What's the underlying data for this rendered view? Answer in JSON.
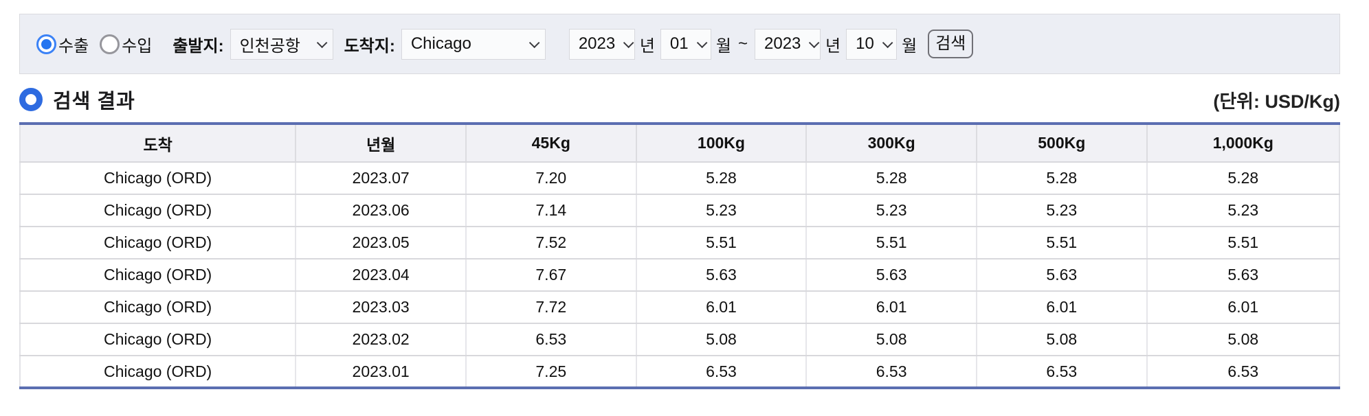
{
  "search_bar": {
    "radio_options": [
      {
        "label": "수출",
        "selected": true
      },
      {
        "label": "수입",
        "selected": false
      }
    ],
    "origin_label": "출발지:",
    "origin_value": "인천공항",
    "destination_label": "도착지:",
    "destination_value": "Chicago",
    "period": {
      "start_year": "2023",
      "start_month": "01",
      "end_year": "2023",
      "end_month": "10",
      "year_suffix": "년",
      "month_suffix": "월",
      "separator": "~"
    },
    "search_button_label": "검색"
  },
  "results": {
    "title": "검색 결과",
    "unit_label": "(단위: USD/Kg)",
    "table": {
      "columns": [
        "도착",
        "년월",
        "45Kg",
        "100Kg",
        "300Kg",
        "500Kg",
        "1,000Kg"
      ],
      "rows": [
        [
          "Chicago (ORD)",
          "2023.07",
          "7.20",
          "5.28",
          "5.28",
          "5.28",
          "5.28"
        ],
        [
          "Chicago (ORD)",
          "2023.06",
          "7.14",
          "5.23",
          "5.23",
          "5.23",
          "5.23"
        ],
        [
          "Chicago (ORD)",
          "2023.05",
          "7.52",
          "5.51",
          "5.51",
          "5.51",
          "5.51"
        ],
        [
          "Chicago (ORD)",
          "2023.04",
          "7.67",
          "5.63",
          "5.63",
          "5.63",
          "5.63"
        ],
        [
          "Chicago (ORD)",
          "2023.03",
          "7.72",
          "6.01",
          "6.01",
          "6.01",
          "6.01"
        ],
        [
          "Chicago (ORD)",
          "2023.02",
          "6.53",
          "5.08",
          "5.08",
          "5.08",
          "5.08"
        ],
        [
          "Chicago (ORD)",
          "2023.01",
          "7.25",
          "6.53",
          "6.53",
          "6.53",
          "6.53"
        ]
      ]
    }
  },
  "colors": {
    "panel_bg": "#eceef4",
    "table_accent": "#5b6eb1",
    "radio_selected": "#2575f0",
    "bullet_ring": "#2e6be0",
    "header_bg": "#f1f1f5"
  }
}
